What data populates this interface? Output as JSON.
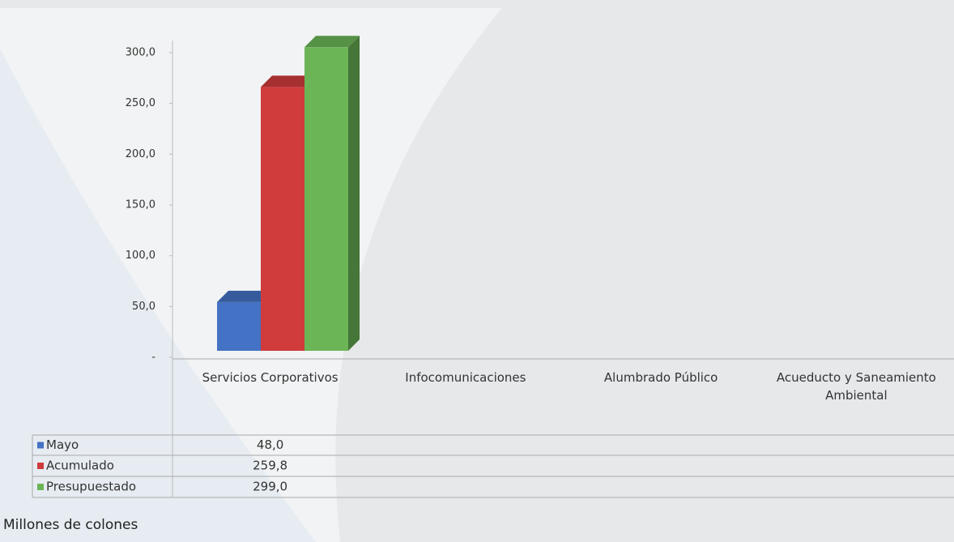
{
  "chart_data": {
    "type": "bar3d",
    "categories": [
      "Servicios Corporativos",
      "Infocomunicaciones",
      "Alumbrado Público",
      "Acueducto y Saneamiento Ambiental"
    ],
    "series": [
      {
        "name": "Mayo",
        "color": "#4472c4",
        "values": [
          48.0,
          null,
          null,
          null
        ],
        "value_labels": [
          "48,0",
          null,
          null,
          null
        ]
      },
      {
        "name": "Acumulado",
        "color": "#d03b3b",
        "values": [
          259.8,
          null,
          null,
          null
        ],
        "value_labels": [
          "259,8",
          null,
          null,
          null
        ]
      },
      {
        "name": "Presupuestado",
        "color": "#6cb556",
        "values": [
          299.0,
          null,
          null,
          null
        ],
        "value_labels": [
          "299,0",
          null,
          null,
          null
        ]
      }
    ],
    "ylim": [
      0,
      300
    ],
    "yticks": [
      {
        "value": 0,
        "label": "-"
      },
      {
        "value": 50,
        "label": "50,0"
      },
      {
        "value": 100,
        "label": "100,0"
      },
      {
        "value": 150,
        "label": "150,0"
      },
      {
        "value": 200,
        "label": "200,0"
      },
      {
        "value": 250,
        "label": "250,0"
      },
      {
        "value": 300,
        "label": "300,0"
      }
    ],
    "note": "Millones de colones"
  }
}
